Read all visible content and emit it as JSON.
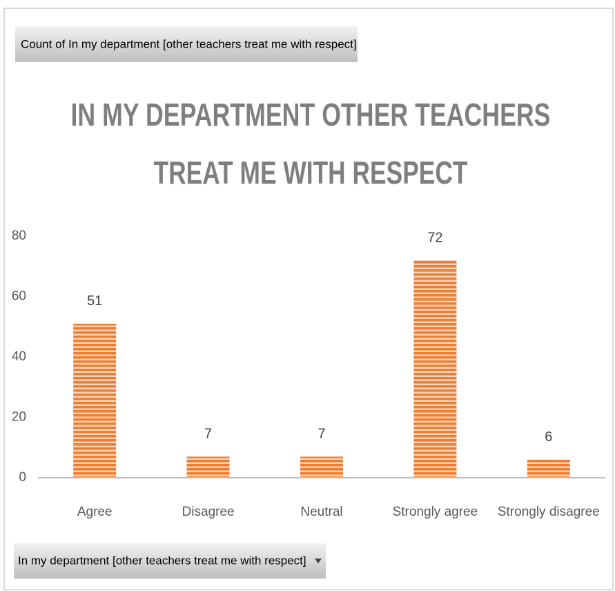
{
  "chart_data": {
    "type": "bar",
    "field_button": "Count of In my department [other teachers treat me with respect]",
    "title": [
      "IN MY DEPARTMENT OTHER TEACHERS",
      "TREAT ME WITH RESPECT"
    ],
    "categories": [
      "Agree",
      "Disagree",
      "Neutral",
      "Strongly agree",
      "Strongly disagree"
    ],
    "values": [
      51,
      7,
      7,
      72,
      6
    ],
    "color": "#ed7d31",
    "ylim": [
      0,
      80
    ],
    "yticks": [
      0,
      20,
      40,
      60,
      80
    ],
    "grid": false,
    "axis_field_button": "In my department [other teachers treat me with respect]"
  }
}
